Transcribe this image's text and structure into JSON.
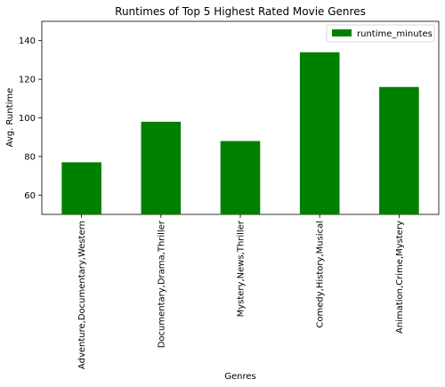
{
  "chart_data": {
    "type": "bar",
    "title": "Runtimes of Top 5 Highest Rated Movie Genres",
    "xlabel": "Genres",
    "ylabel": "Avg. Runtime",
    "categories": [
      "Adventure,Documentary,Western",
      "Documentary,Drama,Thriller",
      "Mystery,News,Thriller",
      "Comedy,History,Musical",
      "Animation,Crime,Mystery"
    ],
    "series": [
      {
        "name": "runtime_minutes",
        "values": [
          77,
          98,
          88,
          134,
          116
        ],
        "color": "#008000"
      }
    ],
    "ylim": [
      50,
      150
    ],
    "yticks": [
      60,
      80,
      100,
      120,
      140
    ],
    "grid": false,
    "legend_position": "top-right"
  }
}
